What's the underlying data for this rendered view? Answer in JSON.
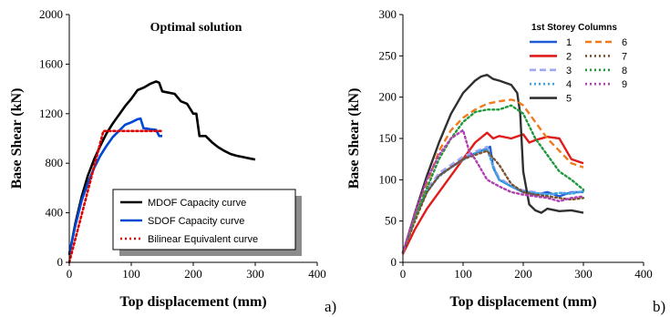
{
  "panel_labels": {
    "a": "a)",
    "b": "b)"
  },
  "chart_data": [
    {
      "type": "line",
      "title": "Optimal solution",
      "xlabel": "Top displacement (mm)",
      "ylabel": "Base Shear (kN)",
      "xlim": [
        0,
        400
      ],
      "ylim": [
        0,
        2000
      ],
      "xticks": [
        "0",
        "100",
        "200",
        "300",
        "400"
      ],
      "yticks": [
        "0",
        "400",
        "800",
        "1200",
        "1600",
        "2000"
      ],
      "grid": false,
      "legend_position": "bottom-right",
      "series": [
        {
          "name": "MDOF Capacity curve",
          "color": "#000000",
          "style": "solid",
          "x": [
            0,
            10,
            20,
            30,
            40,
            50,
            60,
            70,
            80,
            90,
            100,
            110,
            120,
            130,
            140,
            145,
            150,
            160,
            170,
            180,
            190,
            200,
            205,
            210,
            220,
            230,
            240,
            250,
            260,
            270,
            280,
            290,
            300
          ],
          "y": [
            60,
            320,
            530,
            700,
            830,
            940,
            1040,
            1120,
            1190,
            1260,
            1320,
            1390,
            1410,
            1440,
            1460,
            1450,
            1380,
            1370,
            1360,
            1300,
            1280,
            1200,
            1200,
            1020,
            1020,
            970,
            930,
            900,
            875,
            860,
            850,
            840,
            830
          ]
        },
        {
          "name": "SDOF Capacity curve",
          "color": "#0047d4",
          "style": "solid",
          "x": [
            0,
            10,
            20,
            30,
            40,
            50,
            60,
            70,
            80,
            90,
            100,
            110,
            115,
            120,
            125,
            130,
            140,
            145,
            150
          ],
          "y": [
            70,
            300,
            500,
            640,
            760,
            860,
            940,
            1010,
            1060,
            1110,
            1130,
            1155,
            1160,
            1080,
            1080,
            1075,
            1070,
            1020,
            1020
          ]
        },
        {
          "name": "Bilinear Equivalent curve",
          "color": "#e00000",
          "style": "dotted",
          "x": [
            0,
            55,
            150
          ],
          "y": [
            0,
            1060,
            1060
          ]
        }
      ]
    },
    {
      "type": "line",
      "title": "",
      "xlabel": "Top displacement (mm)",
      "ylabel": "Base Shear (kN)",
      "xlim": [
        0,
        400
      ],
      "ylim": [
        0,
        300
      ],
      "xticks": [
        "0",
        "100",
        "200",
        "300",
        "400"
      ],
      "yticks": [
        "0",
        "50",
        "100",
        "150",
        "200",
        "250",
        "300"
      ],
      "grid": false,
      "legend_title": "1st Storey Columns",
      "legend_position": "top-right",
      "series": [
        {
          "name": "1",
          "color": "#1f5bd6",
          "style": "solid",
          "x": [
            0,
            20,
            40,
            60,
            80,
            100,
            120,
            140,
            145,
            150,
            160,
            180,
            200,
            220,
            240,
            260,
            280,
            300
          ],
          "y": [
            10,
            55,
            85,
            105,
            115,
            125,
            132,
            138,
            140,
            115,
            100,
            92,
            85,
            82,
            85,
            80,
            85,
            85
          ]
        },
        {
          "name": "2",
          "color": "#e01b1b",
          "style": "solid",
          "x": [
            0,
            20,
            40,
            60,
            80,
            100,
            120,
            140,
            150,
            160,
            180,
            200,
            210,
            220,
            240,
            260,
            280,
            300
          ],
          "y": [
            10,
            40,
            65,
            85,
            105,
            125,
            145,
            157,
            150,
            153,
            150,
            155,
            145,
            148,
            152,
            150,
            125,
            120
          ]
        },
        {
          "name": "3",
          "color": "#9fa6f2",
          "style": "dashed",
          "x": [
            0,
            20,
            40,
            60,
            80,
            100,
            120,
            140,
            150,
            160,
            180,
            200,
            220,
            240,
            260,
            280,
            300
          ],
          "y": [
            12,
            58,
            88,
            108,
            118,
            128,
            134,
            140,
            117,
            102,
            93,
            87,
            85,
            82,
            84,
            84,
            86
          ]
        },
        {
          "name": "4",
          "color": "#3aa3e0",
          "style": "dotted",
          "x": [
            0,
            20,
            40,
            60,
            80,
            100,
            120,
            140,
            150,
            160,
            180,
            200,
            220,
            240,
            260,
            280,
            300
          ],
          "y": [
            12,
            56,
            86,
            104,
            115,
            124,
            132,
            137,
            116,
            100,
            92,
            86,
            84,
            82,
            84,
            83,
            86
          ]
        },
        {
          "name": "5",
          "color": "#303030",
          "style": "solid",
          "x": [
            0,
            20,
            40,
            60,
            80,
            100,
            120,
            130,
            140,
            150,
            160,
            180,
            190,
            195,
            200,
            210,
            220,
            230,
            240,
            260,
            280,
            300
          ],
          "y": [
            10,
            60,
            105,
            145,
            180,
            205,
            220,
            225,
            227,
            222,
            220,
            215,
            205,
            180,
            110,
            70,
            63,
            60,
            65,
            62,
            63,
            60
          ]
        },
        {
          "name": "6",
          "color": "#f07a1e",
          "style": "dashed",
          "x": [
            0,
            20,
            40,
            60,
            80,
            100,
            120,
            140,
            160,
            180,
            190,
            200,
            220,
            240,
            260,
            280,
            300
          ],
          "y": [
            10,
            55,
            95,
            135,
            160,
            175,
            185,
            192,
            195,
            197,
            195,
            190,
            170,
            150,
            135,
            120,
            115
          ]
        },
        {
          "name": "7",
          "color": "#7a5230",
          "style": "dotted",
          "x": [
            0,
            20,
            40,
            60,
            80,
            100,
            120,
            140,
            160,
            180,
            200,
            220,
            240,
            260,
            280,
            300
          ],
          "y": [
            12,
            50,
            85,
            105,
            115,
            125,
            130,
            135,
            118,
            95,
            85,
            82,
            80,
            78,
            76,
            78
          ]
        },
        {
          "name": "8",
          "color": "#1c9a3c",
          "style": "dotted",
          "x": [
            0,
            20,
            40,
            60,
            80,
            100,
            120,
            140,
            160,
            180,
            200,
            210,
            220,
            240,
            260,
            280,
            300
          ],
          "y": [
            12,
            55,
            90,
            125,
            150,
            170,
            182,
            185,
            185,
            190,
            180,
            165,
            150,
            130,
            110,
            100,
            88
          ]
        },
        {
          "name": "9",
          "color": "#b040b0",
          "style": "dotted",
          "x": [
            0,
            20,
            40,
            60,
            80,
            100,
            110,
            120,
            140,
            160,
            180,
            200,
            220,
            240,
            260,
            280,
            300
          ],
          "y": [
            12,
            60,
            100,
            130,
            150,
            160,
            135,
            125,
            100,
            92,
            85,
            82,
            80,
            78,
            74,
            78,
            80
          ]
        }
      ]
    }
  ]
}
